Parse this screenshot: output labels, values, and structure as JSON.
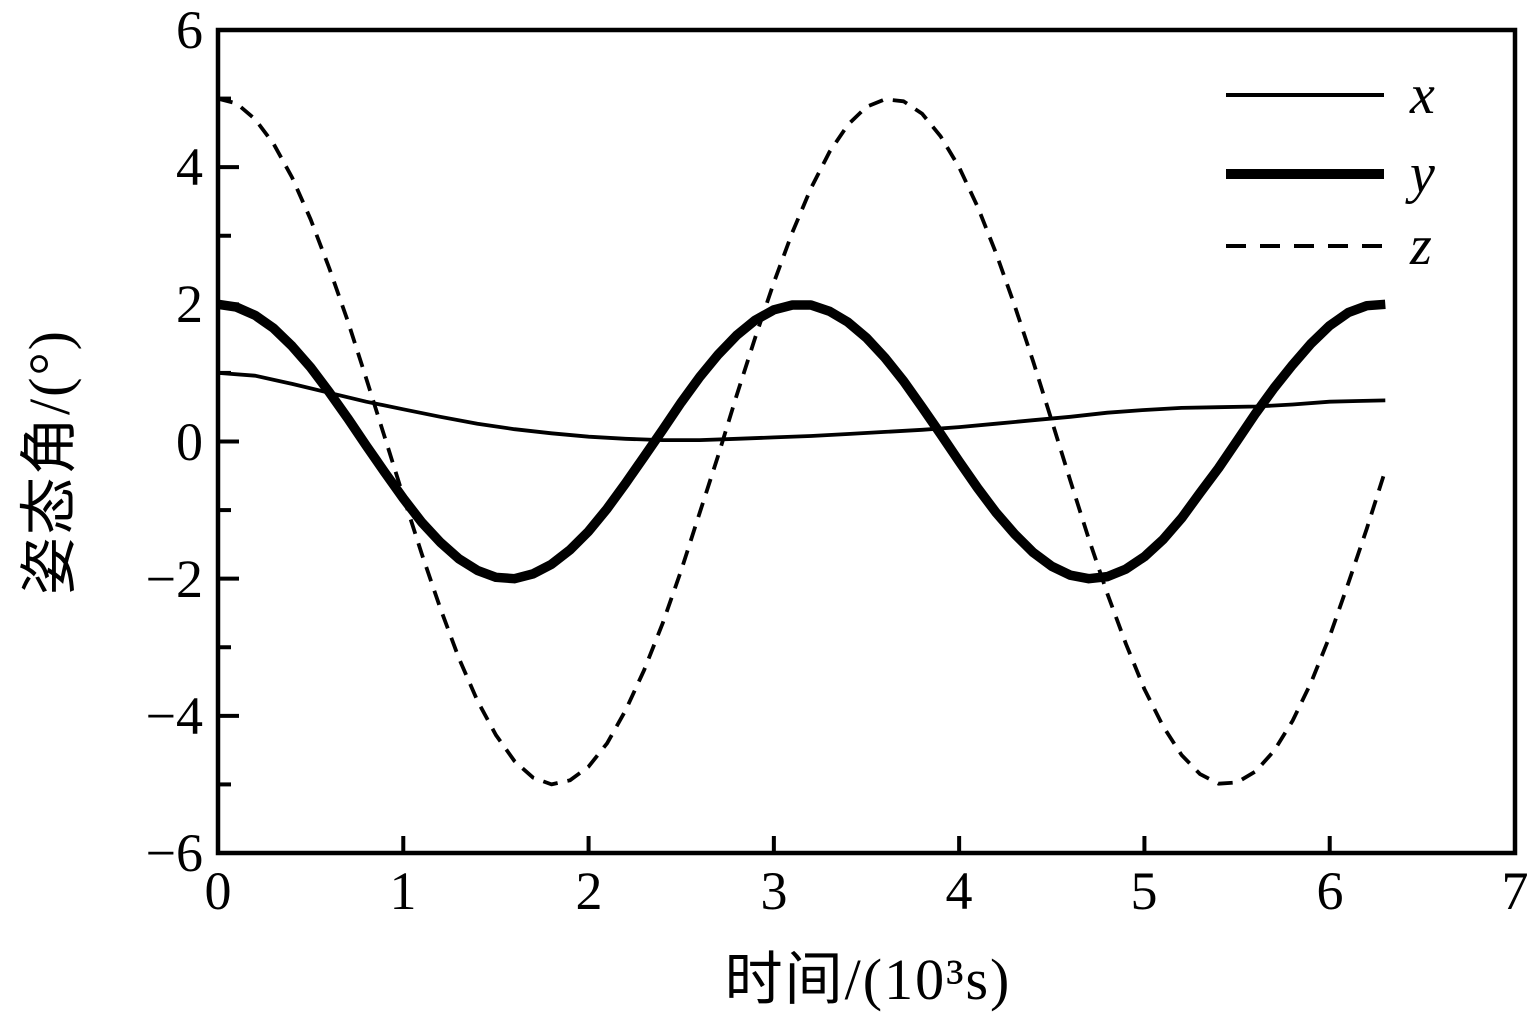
{
  "page": {
    "background": "#ffffff",
    "foreground": "#000000"
  },
  "chart_data": {
    "type": "line",
    "title": "",
    "xlabel": "时间/(10³s)",
    "ylabel": "姿态角/(°)",
    "xlim": [
      0,
      7
    ],
    "ylim": [
      -6,
      6
    ],
    "grid": false,
    "legend_position": "top-right-inside",
    "line_color": "#000000",
    "x_ticks": [
      0,
      1,
      2,
      3,
      4,
      5,
      6,
      7
    ],
    "x_tick_labels": [
      "0",
      "1",
      "2",
      "3",
      "4",
      "5",
      "6",
      "7"
    ],
    "y_ticks_major": [
      6,
      4,
      2,
      0,
      -2,
      -4,
      -6
    ],
    "y_tick_labels": [
      "6",
      "4",
      "2",
      "0",
      "−2",
      "−4",
      "−6"
    ],
    "y_ticks_minor": [
      5,
      3,
      1,
      -1,
      -3,
      -5
    ],
    "series": [
      {
        "name": "x",
        "line": "thin-solid",
        "points": [
          [
            0,
            1.0
          ],
          [
            0.2,
            0.96
          ],
          [
            0.4,
            0.84
          ],
          [
            0.6,
            0.71
          ],
          [
            0.8,
            0.58
          ],
          [
            1,
            0.47
          ],
          [
            1.2,
            0.36
          ],
          [
            1.4,
            0.26
          ],
          [
            1.6,
            0.18
          ],
          [
            1.8,
            0.12
          ],
          [
            2,
            0.07
          ],
          [
            2.2,
            0.04
          ],
          [
            2.4,
            0.02
          ],
          [
            2.6,
            0.02
          ],
          [
            2.8,
            0.04
          ],
          [
            3,
            0.06
          ],
          [
            3.2,
            0.08
          ],
          [
            3.4,
            0.11
          ],
          [
            3.6,
            0.14
          ],
          [
            3.8,
            0.17
          ],
          [
            4,
            0.21
          ],
          [
            4.2,
            0.26
          ],
          [
            4.4,
            0.31
          ],
          [
            4.6,
            0.36
          ],
          [
            4.8,
            0.42
          ],
          [
            5,
            0.46
          ],
          [
            5.2,
            0.49
          ],
          [
            5.4,
            0.5
          ],
          [
            5.6,
            0.51
          ],
          [
            5.8,
            0.54
          ],
          [
            6,
            0.58
          ],
          [
            6.15,
            0.59
          ],
          [
            6.3,
            0.6
          ]
        ]
      },
      {
        "name": "y",
        "line": "thick-solid",
        "points": [
          [
            0,
            2
          ],
          [
            0.1,
            1.96
          ],
          [
            0.2,
            1.84
          ],
          [
            0.3,
            1.65
          ],
          [
            0.4,
            1.39
          ],
          [
            0.5,
            1.08
          ],
          [
            0.6,
            0.72
          ],
          [
            0.7,
            0.34
          ],
          [
            0.8,
            -0.06
          ],
          [
            0.9,
            -0.45
          ],
          [
            1,
            -0.83
          ],
          [
            1.1,
            -1.18
          ],
          [
            1.2,
            -1.47
          ],
          [
            1.3,
            -1.71
          ],
          [
            1.4,
            -1.88
          ],
          [
            1.5,
            -1.98
          ],
          [
            1.6,
            -2
          ],
          [
            1.7,
            -1.93
          ],
          [
            1.8,
            -1.79
          ],
          [
            1.9,
            -1.58
          ],
          [
            2,
            -1.31
          ],
          [
            2.1,
            -0.98
          ],
          [
            2.2,
            -0.61
          ],
          [
            2.3,
            -0.22
          ],
          [
            2.4,
            0.17
          ],
          [
            2.5,
            0.57
          ],
          [
            2.6,
            0.94
          ],
          [
            2.7,
            1.27
          ],
          [
            2.8,
            1.55
          ],
          [
            2.9,
            1.77
          ],
          [
            3,
            1.92
          ],
          [
            3.1,
            1.99
          ],
          [
            3.2,
            1.99
          ],
          [
            3.3,
            1.9
          ],
          [
            3.4,
            1.74
          ],
          [
            3.5,
            1.51
          ],
          [
            3.6,
            1.22
          ],
          [
            3.7,
            0.88
          ],
          [
            3.8,
            0.5
          ],
          [
            3.9,
            0.11
          ],
          [
            4,
            -0.29
          ],
          [
            4.1,
            -0.68
          ],
          [
            4.2,
            -1.04
          ],
          [
            4.3,
            -1.35
          ],
          [
            4.4,
            -1.62
          ],
          [
            4.5,
            -1.82
          ],
          [
            4.6,
            -1.95
          ],
          [
            4.7,
            -2
          ],
          [
            4.8,
            -1.97
          ],
          [
            4.9,
            -1.86
          ],
          [
            5,
            -1.68
          ],
          [
            5.1,
            -1.43
          ],
          [
            5.2,
            -1.12
          ],
          [
            5.3,
            -0.75
          ],
          [
            5.4,
            -0.39
          ],
          [
            5.5,
            0.01
          ],
          [
            5.6,
            0.41
          ],
          [
            5.7,
            0.78
          ],
          [
            5.8,
            1.12
          ],
          [
            5.9,
            1.43
          ],
          [
            6,
            1.69
          ],
          [
            6.1,
            1.88
          ],
          [
            6.2,
            1.98
          ],
          [
            6.3,
            2
          ]
        ]
      },
      {
        "name": "z",
        "line": "dashed",
        "points": [
          [
            0,
            5
          ],
          [
            0.1,
            4.93
          ],
          [
            0.2,
            4.7
          ],
          [
            0.3,
            4.34
          ],
          [
            0.4,
            3.85
          ],
          [
            0.5,
            3.24
          ],
          [
            0.6,
            2.53
          ],
          [
            0.7,
            1.76
          ],
          [
            0.8,
            0.92
          ],
          [
            0.9,
            0.06
          ],
          [
            1,
            -0.8
          ],
          [
            1.1,
            -1.64
          ],
          [
            1.2,
            -2.43
          ],
          [
            1.3,
            -3.16
          ],
          [
            1.4,
            -3.78
          ],
          [
            1.5,
            -4.28
          ],
          [
            1.6,
            -4.66
          ],
          [
            1.7,
            -4.9
          ],
          [
            1.8,
            -5
          ],
          [
            1.9,
            -4.94
          ],
          [
            2,
            -4.74
          ],
          [
            2.1,
            -4.4
          ],
          [
            2.2,
            -3.92
          ],
          [
            2.3,
            -3.33
          ],
          [
            2.4,
            -2.65
          ],
          [
            2.5,
            -1.88
          ],
          [
            2.6,
            -1.04
          ],
          [
            2.7,
            -0.2
          ],
          [
            2.8,
            0.68
          ],
          [
            2.9,
            1.52
          ],
          [
            3,
            2.32
          ],
          [
            3.1,
            3.05
          ],
          [
            3.2,
            3.69
          ],
          [
            3.3,
            4.22
          ],
          [
            3.4,
            4.62
          ],
          [
            3.5,
            4.88
          ],
          [
            3.6,
            4.99
          ],
          [
            3.7,
            4.96
          ],
          [
            3.8,
            4.78
          ],
          [
            3.9,
            4.45
          ],
          [
            4,
            4
          ],
          [
            4.1,
            3.42
          ],
          [
            4.2,
            2.74
          ],
          [
            4.3,
            1.98
          ],
          [
            4.4,
            1.16
          ],
          [
            4.5,
            0.3
          ],
          [
            4.6,
            -0.57
          ],
          [
            4.7,
            -1.42
          ],
          [
            4.8,
            -2.22
          ],
          [
            4.9,
            -2.95
          ],
          [
            5,
            -3.61
          ],
          [
            5.1,
            -4.15
          ],
          [
            5.2,
            -4.57
          ],
          [
            5.3,
            -4.85
          ],
          [
            5.4,
            -4.99
          ],
          [
            5.5,
            -4.97
          ],
          [
            5.6,
            -4.81
          ],
          [
            5.7,
            -4.51
          ],
          [
            5.8,
            -4.07
          ],
          [
            5.9,
            -3.51
          ],
          [
            6,
            -2.84
          ],
          [
            6.1,
            -2.07
          ],
          [
            6.2,
            -1.27
          ],
          [
            6.3,
            -0.42
          ]
        ]
      }
    ]
  }
}
